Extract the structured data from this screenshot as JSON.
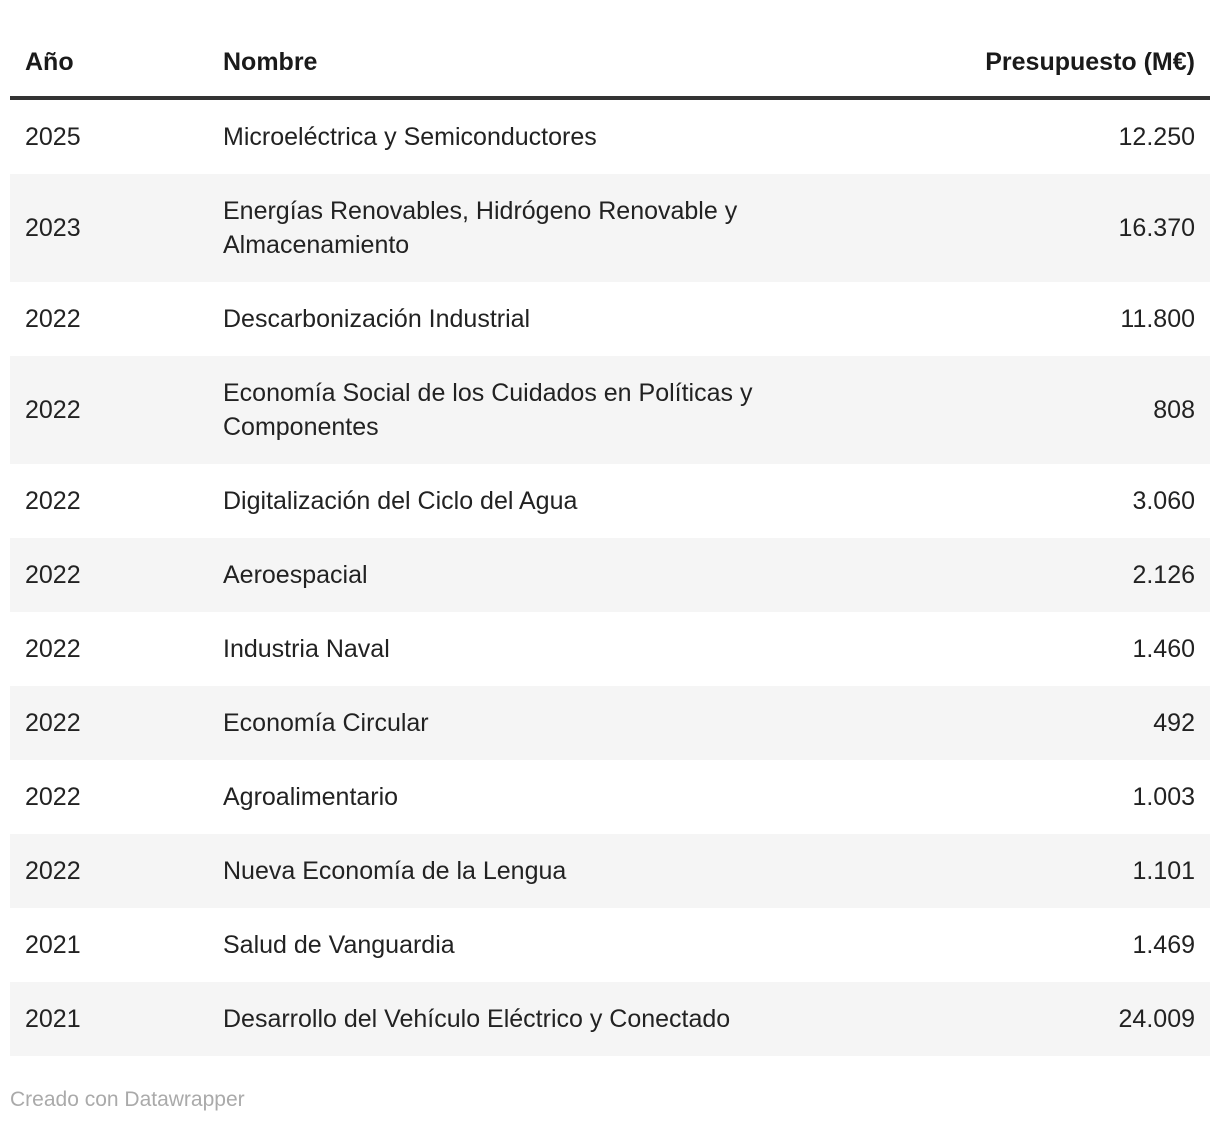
{
  "chart_data": {
    "type": "table",
    "columns": [
      "Año",
      "Nombre",
      "Presupuesto (M€)"
    ],
    "rows": [
      {
        "year": "2025",
        "name": "Microeléctrica y Semiconductores",
        "budget": "12.250"
      },
      {
        "year": "2023",
        "name": "Energías Renovables, Hidrógeno Renovable y Almacenamiento",
        "budget": "16.370"
      },
      {
        "year": "2022",
        "name": "Descarbonización Industrial",
        "budget": "11.800"
      },
      {
        "year": "2022",
        "name": "Economía Social de los Cuidados en Políticas y Componentes",
        "budget": "808"
      },
      {
        "year": "2022",
        "name": "Digitalización del Ciclo del Agua",
        "budget": "3.060"
      },
      {
        "year": "2022",
        "name": "Aeroespacial",
        "budget": "2.126"
      },
      {
        "year": "2022",
        "name": "Industria Naval",
        "budget": "1.460"
      },
      {
        "year": "2022",
        "name": "Economía Circular",
        "budget": "492"
      },
      {
        "year": "2022",
        "name": "Agroalimentario",
        "budget": "1.003"
      },
      {
        "year": "2022",
        "name": "Nueva Economía de la Lengua",
        "budget": "1.101"
      },
      {
        "year": "2021",
        "name": "Salud de Vanguardia",
        "budget": "1.469"
      },
      {
        "year": "2021",
        "name": "Desarrollo del Vehículo Eléctrico y Conectado",
        "budget": "24.009"
      }
    ],
    "layout": {
      "striped_rows": true,
      "stripe_start_row_index": 1,
      "header_rule": true
    }
  },
  "header": {
    "col_year": "Año",
    "col_name": "Nombre",
    "col_budget": "Presupuesto (M€)"
  },
  "footer": {
    "attribution": "Creado con Datawrapper"
  },
  "colors": {
    "stripe": "#f5f5f5",
    "header_rule": "#333333",
    "header_text": "#1a1a1a",
    "body_text": "#222222",
    "footer_text": "#aaaaaa",
    "background": "#ffffff"
  }
}
